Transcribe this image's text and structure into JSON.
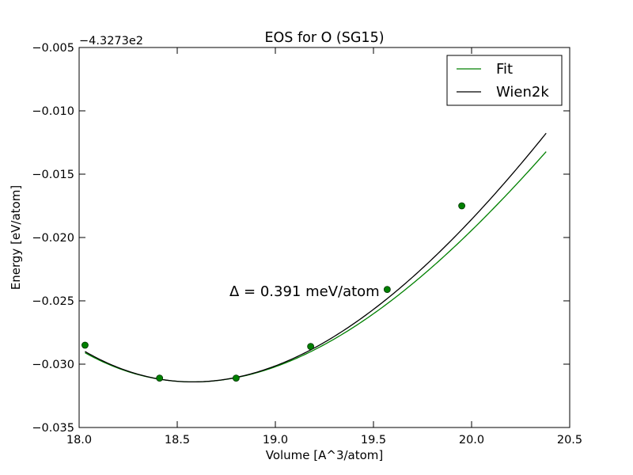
{
  "chart_data": {
    "type": "line",
    "title": "EOS for O (SG15)",
    "xlabel": "Volume [A^3/atom]",
    "ylabel": "Energy [eV/atom]",
    "xlim": [
      18.0,
      20.5
    ],
    "ylim": [
      -0.035,
      -0.005
    ],
    "y_offset_label": "−4.3273e2",
    "xticks": [
      "18.0",
      "18.5",
      "19.0",
      "19.5",
      "20.0",
      "20.5"
    ],
    "xtick_values": [
      18.0,
      18.5,
      19.0,
      19.5,
      20.0,
      20.5
    ],
    "yticks": [
      "−0.035",
      "−0.030",
      "−0.025",
      "−0.020",
      "−0.015",
      "−0.010",
      "−0.005"
    ],
    "ytick_values": [
      -0.035,
      -0.03,
      -0.025,
      -0.02,
      -0.015,
      -0.01,
      -0.005
    ],
    "annotation": "Δ = 0.391 meV/atom",
    "legend_position": "top-right",
    "grid": false,
    "series": [
      {
        "name": "Fit",
        "color": "#008000",
        "style": "line",
        "V0": 18.58,
        "E0": -0.0314,
        "curvature": 0.00714,
        "cubic": -0.00085
      },
      {
        "name": "Wien2k",
        "color": "#000000",
        "style": "line",
        "V0": 18.58,
        "E0": -0.0314,
        "curvature": 0.0075,
        "cubic": -0.0008
      }
    ],
    "points": {
      "color": "#008000",
      "x": [
        18.03,
        18.41,
        18.8,
        19.18,
        19.57,
        19.95
      ],
      "y": [
        -0.0285,
        -0.0311,
        -0.0311,
        -0.0286,
        -0.0241,
        -0.0175
      ]
    }
  }
}
